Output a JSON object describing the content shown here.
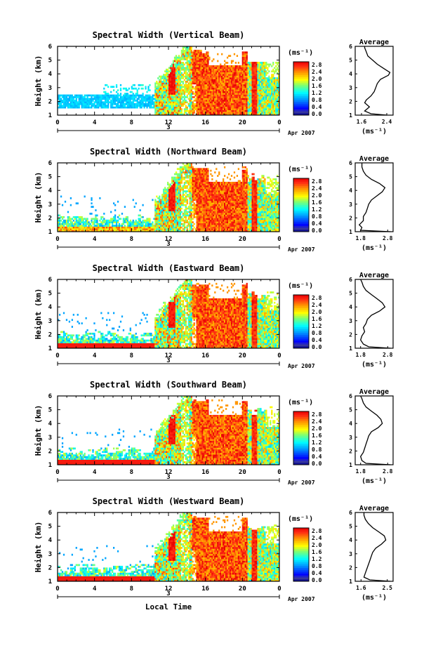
{
  "figure": {
    "title_prefix": "Spectral Width",
    "xlabel": "Local Time",
    "ylabel": "Height (km)",
    "unit_label": "(ms⁻¹)",
    "date_day": "3",
    "date_text": "Apr 2007",
    "avg_title": "Average"
  },
  "chart_data": [
    {
      "type": "heatmap",
      "title": "Spectral Width (Vertical Beam)",
      "xlabel": "",
      "ylabel": "Height (km)",
      "x_ticks": [
        "0",
        "4",
        "8",
        "12",
        "16",
        "20",
        "0"
      ],
      "y_ticks": [
        "1",
        "2",
        "3",
        "4",
        "5",
        "6"
      ],
      "xlim": [
        0,
        24
      ],
      "ylim": [
        1,
        6
      ],
      "colorbar_ticks": [
        "2.8",
        "2.4",
        "2.0",
        "1.6",
        "1.2",
        "0.8",
        "0.4",
        "0.0"
      ],
      "colorbar_range": [
        0.0,
        2.8
      ],
      "avg_profile": {
        "title": "Average",
        "x_ticks": [
          "1.6",
          "2.4"
        ],
        "xlim": [
          1.4,
          2.6
        ],
        "ylim": [
          1,
          6
        ],
        "y_ticks": [
          "1",
          "2",
          "3",
          "4",
          "5",
          "6"
        ],
        "xlabel": "(ms⁻¹)",
        "height": [
          1.0,
          1.1,
          1.3,
          1.6,
          1.9,
          2.1,
          2.4,
          2.7,
          3.0,
          3.3,
          3.6,
          3.9,
          4.1,
          4.4,
          4.7,
          5.0,
          5.3,
          5.6,
          5.9,
          6.0
        ],
        "value": [
          2.4,
          1.9,
          1.7,
          1.85,
          1.7,
          1.75,
          1.9,
          2.0,
          2.05,
          2.1,
          2.2,
          2.45,
          2.5,
          2.3,
          2.1,
          1.95,
          1.8,
          1.75,
          1.7,
          1.7
        ]
      }
    },
    {
      "type": "heatmap",
      "title": "Spectral Width (Northward Beam)",
      "xlabel": "",
      "ylabel": "Height (km)",
      "x_ticks": [
        "0",
        "4",
        "8",
        "12",
        "16",
        "20",
        "0"
      ],
      "y_ticks": [
        "1",
        "2",
        "3",
        "4",
        "5",
        "6"
      ],
      "xlim": [
        0,
        24
      ],
      "ylim": [
        1,
        6
      ],
      "colorbar_ticks": [
        "2.8",
        "2.4",
        "2.0",
        "1.6",
        "1.2",
        "0.8",
        "0.4",
        "0.0"
      ],
      "colorbar_range": [
        0.0,
        2.8
      ],
      "avg_profile": {
        "title": "Average",
        "x_ticks": [
          "1.8",
          "2.8"
        ],
        "xlim": [
          1.6,
          3.0
        ],
        "ylim": [
          1,
          6
        ],
        "y_ticks": [
          "1",
          "2",
          "3",
          "4",
          "5",
          "6"
        ],
        "xlabel": "(ms⁻¹)",
        "height": [
          1.0,
          1.1,
          1.3,
          1.5,
          1.8,
          2.1,
          2.4,
          2.7,
          3.0,
          3.3,
          3.6,
          3.9,
          4.2,
          4.5,
          4.8,
          5.1,
          5.4,
          5.7,
          6.0
        ],
        "value": [
          2.9,
          1.8,
          1.85,
          1.75,
          1.9,
          1.9,
          2.0,
          2.05,
          2.1,
          2.2,
          2.4,
          2.6,
          2.7,
          2.5,
          2.2,
          2.0,
          1.9,
          1.85,
          1.85
        ]
      }
    },
    {
      "type": "heatmap",
      "title": "Spectral Width (Eastward Beam)",
      "xlabel": "",
      "ylabel": "Height (km)",
      "x_ticks": [
        "0",
        "4",
        "8",
        "12",
        "16",
        "20",
        "0"
      ],
      "y_ticks": [
        "1",
        "2",
        "3",
        "4",
        "5",
        "6"
      ],
      "xlim": [
        0,
        24
      ],
      "ylim": [
        1,
        6
      ],
      "colorbar_ticks": [
        "2.8",
        "2.4",
        "2.0",
        "1.6",
        "1.2",
        "0.8",
        "0.4",
        "0.0"
      ],
      "colorbar_range": [
        0.0,
        2.8
      ],
      "avg_profile": {
        "title": "Average",
        "x_ticks": [
          "1.8",
          "2.8"
        ],
        "xlim": [
          1.6,
          3.0
        ],
        "ylim": [
          1,
          6
        ],
        "y_ticks": [
          "1",
          "2",
          "3",
          "4",
          "5",
          "6"
        ],
        "xlabel": "(ms⁻¹)",
        "height": [
          1.0,
          1.1,
          1.3,
          1.6,
          1.9,
          2.2,
          2.5,
          2.8,
          3.1,
          3.4,
          3.7,
          4.0,
          4.3,
          4.6,
          4.9,
          5.2,
          5.5,
          5.8,
          6.0
        ],
        "value": [
          2.9,
          2.1,
          1.9,
          1.8,
          1.85,
          1.95,
          1.9,
          2.0,
          2.05,
          2.2,
          2.5,
          2.7,
          2.6,
          2.4,
          2.2,
          2.0,
          1.9,
          1.85,
          1.8
        ]
      }
    },
    {
      "type": "heatmap",
      "title": "Spectral Width (Southward Beam)",
      "xlabel": "",
      "ylabel": "Height (km)",
      "x_ticks": [
        "0",
        "4",
        "8",
        "12",
        "16",
        "20",
        "0"
      ],
      "y_ticks": [
        "1",
        "2",
        "3",
        "4",
        "5",
        "6"
      ],
      "xlim": [
        0,
        24
      ],
      "ylim": [
        1,
        6
      ],
      "colorbar_ticks": [
        "2.8",
        "2.4",
        "2.0",
        "1.6",
        "1.2",
        "0.8",
        "0.4",
        "0.0"
      ],
      "colorbar_range": [
        0.0,
        2.8
      ],
      "avg_profile": {
        "title": "Average",
        "x_ticks": [
          "1.8",
          "2.8"
        ],
        "xlim": [
          1.6,
          3.0
        ],
        "ylim": [
          1,
          6
        ],
        "y_ticks": [
          "1",
          "2",
          "3",
          "4",
          "5",
          "6"
        ],
        "xlabel": "(ms⁻¹)",
        "height": [
          1.0,
          1.1,
          1.3,
          1.6,
          1.9,
          2.2,
          2.5,
          2.8,
          3.1,
          3.4,
          3.7,
          4.0,
          4.3,
          4.6,
          4.9,
          5.2,
          5.5,
          5.8,
          6.0
        ],
        "value": [
          2.9,
          2.0,
          1.85,
          1.8,
          1.9,
          1.95,
          2.0,
          2.05,
          2.1,
          2.2,
          2.45,
          2.6,
          2.55,
          2.4,
          2.2,
          2.0,
          1.9,
          1.85,
          1.8
        ]
      }
    },
    {
      "type": "heatmap",
      "title": "Spectral Width (Westward Beam)",
      "xlabel": "Local Time",
      "ylabel": "Height (km)",
      "x_ticks": [
        "0",
        "4",
        "8",
        "12",
        "16",
        "20",
        "0"
      ],
      "y_ticks": [
        "1",
        "2",
        "3",
        "4",
        "5",
        "6"
      ],
      "xlim": [
        0,
        24
      ],
      "ylim": [
        1,
        6
      ],
      "colorbar_ticks": [
        "2.8",
        "2.4",
        "2.0",
        "1.6",
        "1.2",
        "0.8",
        "0.4",
        "0.0"
      ],
      "colorbar_range": [
        0.0,
        2.8
      ],
      "avg_profile": {
        "title": "Average",
        "x_ticks": [
          "1.6",
          "2.5"
        ],
        "xlim": [
          1.4,
          2.7
        ],
        "ylim": [
          1,
          6
        ],
        "y_ticks": [
          "1",
          "2",
          "3",
          "4",
          "5",
          "6"
        ],
        "xlabel": "(ms⁻¹)",
        "height": [
          1.0,
          1.1,
          1.3,
          1.6,
          1.9,
          2.2,
          2.5,
          2.8,
          3.1,
          3.4,
          3.7,
          4.0,
          4.3,
          4.6,
          4.9,
          5.2,
          5.5,
          5.8,
          6.0
        ],
        "value": [
          2.6,
          1.9,
          1.7,
          1.75,
          1.8,
          1.85,
          1.9,
          1.95,
          2.0,
          2.1,
          2.3,
          2.45,
          2.4,
          2.2,
          2.0,
          1.85,
          1.75,
          1.7,
          1.7
        ]
      }
    }
  ]
}
